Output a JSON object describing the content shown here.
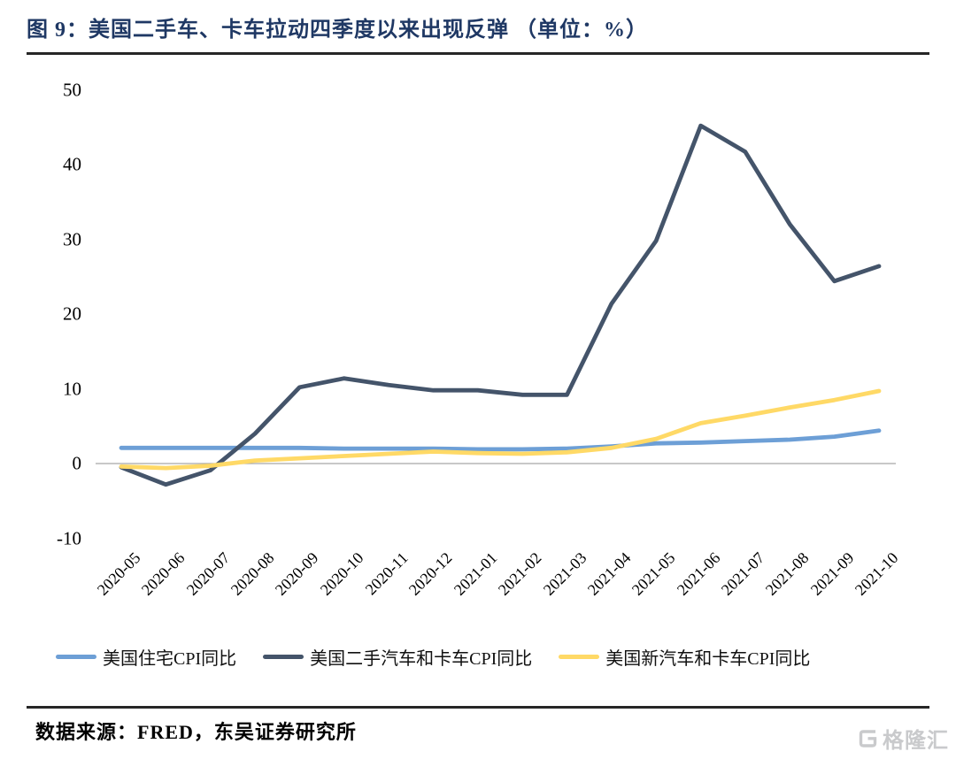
{
  "title": "图 9：美国二手车、卡车拉动四季度以来出现反弹 （单位：%）",
  "source_note": "数据来源：FRED，东吴证券研究所",
  "watermark": "格隆汇",
  "colors": {
    "title_navy": "#1F3864",
    "rule_dark": "#262626",
    "zero_line": "#A6A6A6",
    "axis_text": "#000000",
    "watermark_gray": "#C9CACC"
  },
  "chart_data": {
    "type": "line",
    "title": "美国二手车、卡车拉动四季度以来出现反弹",
    "unit": "%",
    "categories": [
      "2020-05",
      "2020-06",
      "2020-07",
      "2020-08",
      "2020-09",
      "2020-10",
      "2020-11",
      "2020-12",
      "2021-01",
      "2021-02",
      "2021-03",
      "2021-04",
      "2021-05",
      "2021-06",
      "2021-07",
      "2021-08",
      "2021-09",
      "2021-10"
    ],
    "series": [
      {
        "name": "美国住宅CPI同比",
        "color": "#6D9FD6",
        "values": [
          2.1,
          2.1,
          2.1,
          2.1,
          2.1,
          2.0,
          2.0,
          2.0,
          1.9,
          1.9,
          2.0,
          2.3,
          2.7,
          2.8,
          3.0,
          3.2,
          3.6,
          4.4
        ]
      },
      {
        "name": "美国二手汽车和卡车CPI同比",
        "color": "#44546A",
        "values": [
          -0.5,
          -2.8,
          -0.9,
          4.0,
          10.2,
          11.4,
          10.5,
          9.8,
          9.8,
          9.2,
          9.2,
          21.4,
          29.8,
          45.2,
          41.7,
          32.0,
          24.4,
          26.4
        ]
      },
      {
        "name": "美国新汽车和卡车CPI同比",
        "color": "#FFD966",
        "values": [
          -0.4,
          -0.6,
          -0.3,
          0.4,
          0.7,
          1.0,
          1.3,
          1.6,
          1.4,
          1.3,
          1.5,
          2.1,
          3.3,
          5.4,
          6.4,
          7.5,
          8.5,
          9.7
        ]
      }
    ],
    "y_ticks": [
      50,
      40,
      30,
      20,
      10,
      0,
      -10
    ],
    "ylim": [
      -10,
      50
    ],
    "grid": "zero-line-only",
    "legend_position": "bottom"
  }
}
